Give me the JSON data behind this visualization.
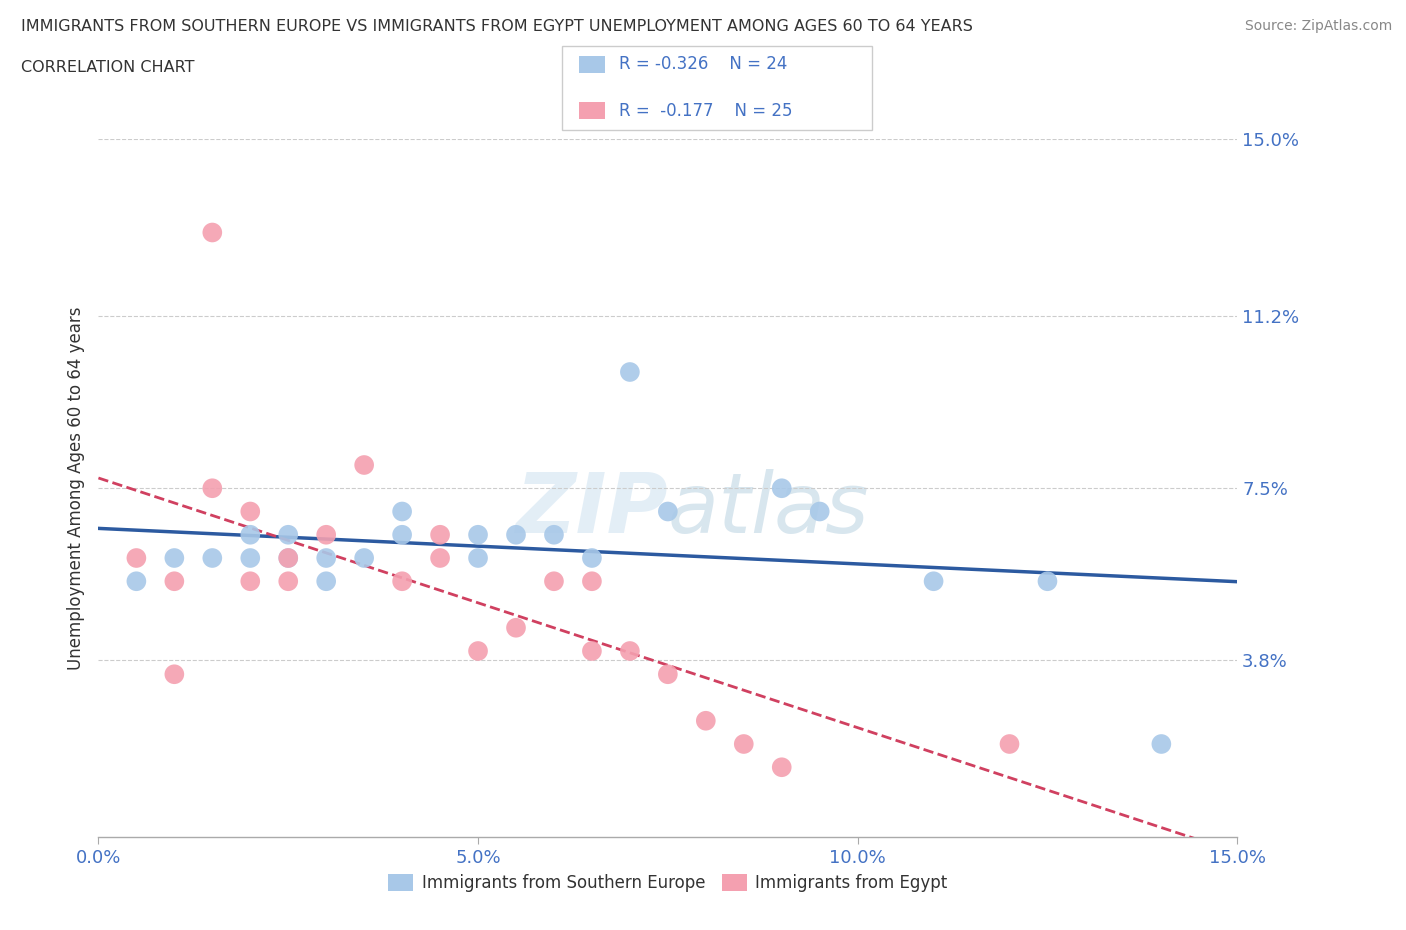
{
  "title_line1": "IMMIGRANTS FROM SOUTHERN EUROPE VS IMMIGRANTS FROM EGYPT UNEMPLOYMENT AMONG AGES 60 TO 64 YEARS",
  "title_line2": "CORRELATION CHART",
  "source": "Source: ZipAtlas.com",
  "ylabel": "Unemployment Among Ages 60 to 64 years",
  "xlim": [
    0,
    0.15
  ],
  "ylim": [
    0,
    0.15
  ],
  "xticks": [
    0.0,
    0.05,
    0.1,
    0.15
  ],
  "xtick_labels": [
    "0.0%",
    "5.0%",
    "10.0%",
    "15.0%"
  ],
  "ytick_vals": [
    0.038,
    0.075,
    0.112,
    0.15
  ],
  "ytick_labels": [
    "3.8%",
    "7.5%",
    "11.2%",
    "15.0%"
  ],
  "gridline_color": "#cccccc",
  "background_color": "#ffffff",
  "blue_color": "#a8c8e8",
  "blue_line_color": "#2c5aa0",
  "pink_color": "#f4a0b0",
  "pink_line_color": "#d04060",
  "R_blue": -0.326,
  "N_blue": 24,
  "R_pink": -0.177,
  "N_pink": 25,
  "legend_label_blue": "Immigrants from Southern Europe",
  "legend_label_pink": "Immigrants from Egypt",
  "axis_color": "#4472c4",
  "text_color": "#333333",
  "blue_scatter_x": [
    0.005,
    0.01,
    0.015,
    0.02,
    0.02,
    0.025,
    0.025,
    0.03,
    0.03,
    0.035,
    0.04,
    0.04,
    0.05,
    0.05,
    0.055,
    0.06,
    0.065,
    0.07,
    0.075,
    0.09,
    0.095,
    0.11,
    0.125,
    0.14
  ],
  "blue_scatter_y": [
    0.055,
    0.06,
    0.06,
    0.06,
    0.065,
    0.06,
    0.065,
    0.055,
    0.06,
    0.06,
    0.065,
    0.07,
    0.06,
    0.065,
    0.065,
    0.065,
    0.06,
    0.1,
    0.07,
    0.075,
    0.07,
    0.055,
    0.055,
    0.02
  ],
  "pink_scatter_x": [
    0.005,
    0.01,
    0.01,
    0.015,
    0.015,
    0.02,
    0.02,
    0.025,
    0.025,
    0.03,
    0.035,
    0.04,
    0.045,
    0.045,
    0.05,
    0.055,
    0.06,
    0.065,
    0.065,
    0.07,
    0.075,
    0.08,
    0.085,
    0.09,
    0.12
  ],
  "pink_scatter_y": [
    0.06,
    0.035,
    0.055,
    0.13,
    0.075,
    0.07,
    0.055,
    0.06,
    0.055,
    0.065,
    0.08,
    0.055,
    0.06,
    0.065,
    0.04,
    0.045,
    0.055,
    0.04,
    0.055,
    0.04,
    0.035,
    0.025,
    0.02,
    0.015,
    0.02
  ],
  "watermark_text": "ZIPatlas",
  "watermark_color": "#b0d0e8"
}
